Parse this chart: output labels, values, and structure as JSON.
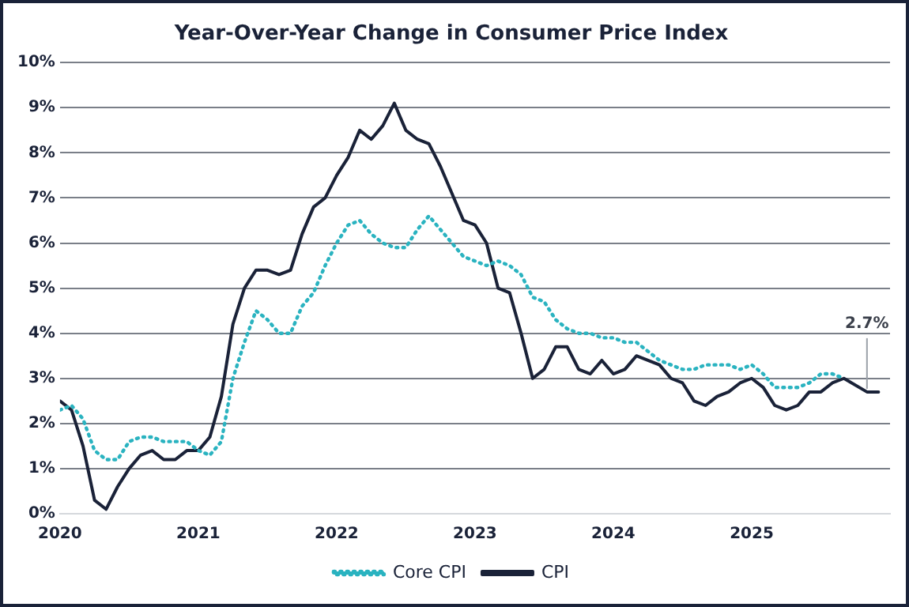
{
  "chart_data": {
    "type": "line",
    "title": "Year-Over-Year Change in Consumer Price Index",
    "xlim": [
      "2020-01",
      "2026-01"
    ],
    "xticks": [
      "2020",
      "2021",
      "2022",
      "2023",
      "2024",
      "2025"
    ],
    "ylim": [
      0,
      10
    ],
    "yticks": [
      {
        "value": 0,
        "label": "0%"
      },
      {
        "value": 1,
        "label": "1%"
      },
      {
        "value": 2,
        "label": "2%"
      },
      {
        "value": 3,
        "label": "3%"
      },
      {
        "value": 4,
        "label": "4%"
      },
      {
        "value": 5,
        "label": "5%"
      },
      {
        "value": 6,
        "label": "6%"
      },
      {
        "value": 7,
        "label": "7%"
      },
      {
        "value": 8,
        "label": "8%"
      },
      {
        "value": 9,
        "label": "9%"
      },
      {
        "value": 10,
        "label": "10%"
      }
    ],
    "grid": "y",
    "legend": "bottom",
    "marker": "none",
    "series": [
      {
        "name": "Core CPI",
        "color": "#2ab3c0",
        "line_style": "dotted",
        "x": [
          "2020-01",
          "2020-02",
          "2020-03",
          "2020-04",
          "2020-05",
          "2020-06",
          "2020-07",
          "2020-08",
          "2020-09",
          "2020-10",
          "2020-11",
          "2020-12",
          "2021-01",
          "2021-02",
          "2021-03",
          "2021-04",
          "2021-05",
          "2021-06",
          "2021-07",
          "2021-08",
          "2021-09",
          "2021-10",
          "2021-11",
          "2021-12",
          "2022-01",
          "2022-02",
          "2022-03",
          "2022-04",
          "2022-05",
          "2022-06",
          "2022-07",
          "2022-08",
          "2022-09",
          "2022-10",
          "2022-11",
          "2022-12",
          "2023-01",
          "2023-02",
          "2023-03",
          "2023-04",
          "2023-05",
          "2023-06",
          "2023-07",
          "2023-08",
          "2023-09",
          "2023-10",
          "2023-11",
          "2023-12",
          "2024-01",
          "2024-02",
          "2024-03",
          "2024-04",
          "2024-05",
          "2024-06",
          "2024-07",
          "2024-08",
          "2024-09",
          "2024-10",
          "2024-11",
          "2024-12",
          "2025-01",
          "2025-02",
          "2025-03",
          "2025-04",
          "2025-05",
          "2025-06",
          "2025-07",
          "2025-08",
          "2025-09"
        ],
        "values": [
          2.3,
          2.4,
          2.1,
          1.4,
          1.2,
          1.2,
          1.6,
          1.7,
          1.7,
          1.6,
          1.6,
          1.6,
          1.4,
          1.3,
          1.6,
          3.0,
          3.8,
          4.5,
          4.3,
          4.0,
          4.0,
          4.6,
          4.9,
          5.5,
          6.0,
          6.4,
          6.5,
          6.2,
          6.0,
          5.9,
          5.9,
          6.3,
          6.6,
          6.3,
          6.0,
          5.7,
          5.6,
          5.5,
          5.6,
          5.5,
          5.3,
          4.8,
          4.7,
          4.3,
          4.1,
          4.0,
          4.0,
          3.9,
          3.9,
          3.8,
          3.8,
          3.6,
          3.4,
          3.3,
          3.2,
          3.2,
          3.3,
          3.3,
          3.3,
          3.2,
          3.3,
          3.1,
          2.8,
          2.8,
          2.8,
          2.9,
          3.1,
          3.1,
          3.0
        ]
      },
      {
        "name": "CPI",
        "color": "#1a2238",
        "line_style": "solid",
        "x": [
          "2020-01",
          "2020-02",
          "2020-03",
          "2020-04",
          "2020-05",
          "2020-06",
          "2020-07",
          "2020-08",
          "2020-09",
          "2020-10",
          "2020-11",
          "2020-12",
          "2021-01",
          "2021-02",
          "2021-03",
          "2021-04",
          "2021-05",
          "2021-06",
          "2021-07",
          "2021-08",
          "2021-09",
          "2021-10",
          "2021-11",
          "2021-12",
          "2022-01",
          "2022-02",
          "2022-03",
          "2022-04",
          "2022-05",
          "2022-06",
          "2022-07",
          "2022-08",
          "2022-09",
          "2022-10",
          "2022-11",
          "2022-12",
          "2023-01",
          "2023-02",
          "2023-03",
          "2023-04",
          "2023-05",
          "2023-06",
          "2023-07",
          "2023-08",
          "2023-09",
          "2023-10",
          "2023-11",
          "2023-12",
          "2024-01",
          "2024-02",
          "2024-03",
          "2024-04",
          "2024-05",
          "2024-06",
          "2024-07",
          "2024-08",
          "2024-09",
          "2024-10",
          "2024-11",
          "2024-12",
          "2025-01",
          "2025-02",
          "2025-03",
          "2025-04",
          "2025-05",
          "2025-06",
          "2025-07",
          "2025-08",
          "2025-09",
          "2025-11",
          "2025-12"
        ],
        "values": [
          2.5,
          2.3,
          1.5,
          0.3,
          0.1,
          0.6,
          1.0,
          1.3,
          1.4,
          1.2,
          1.2,
          1.4,
          1.4,
          1.7,
          2.6,
          4.2,
          5.0,
          5.4,
          5.4,
          5.3,
          5.4,
          6.2,
          6.8,
          7.0,
          7.5,
          7.9,
          8.5,
          8.3,
          8.6,
          9.1,
          8.5,
          8.3,
          8.2,
          7.7,
          7.1,
          6.5,
          6.4,
          6.0,
          5.0,
          4.9,
          4.0,
          3.0,
          3.2,
          3.7,
          3.7,
          3.2,
          3.1,
          3.4,
          3.1,
          3.2,
          3.5,
          3.4,
          3.3,
          3.0,
          2.9,
          2.5,
          2.4,
          2.6,
          2.7,
          2.9,
          3.0,
          2.8,
          2.4,
          2.3,
          2.4,
          2.7,
          2.7,
          2.9,
          3.0,
          2.7,
          2.7
        ]
      }
    ],
    "annotations": [
      {
        "text": "2.7%",
        "x": "2025-11",
        "y": 2.7
      }
    ]
  }
}
